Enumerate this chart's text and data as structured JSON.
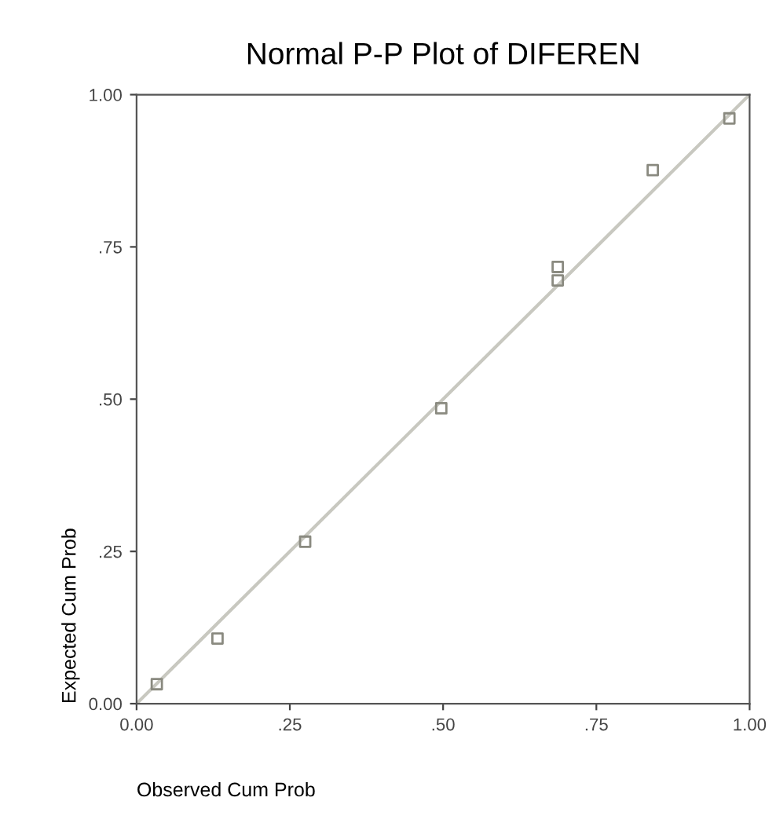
{
  "chart_data": {
    "type": "scatter",
    "title": "Normal P-P Plot of DIFEREN",
    "xlabel": "Observed Cum Prob",
    "ylabel": "Expected Cum Prob",
    "xlim": [
      0,
      1
    ],
    "ylim": [
      0,
      1
    ],
    "xticks": [
      {
        "value": 0,
        "label": "0.00"
      },
      {
        "value": 0.25,
        "label": ".25"
      },
      {
        "value": 0.5,
        "label": ".50"
      },
      {
        "value": 0.75,
        "label": ".75"
      },
      {
        "value": 1,
        "label": "1.00"
      }
    ],
    "yticks": [
      {
        "value": 0,
        "label": "0.00"
      },
      {
        "value": 0.25,
        "label": ".25"
      },
      {
        "value": 0.5,
        "label": ".50"
      },
      {
        "value": 0.75,
        "label": ".75"
      },
      {
        "value": 1,
        "label": "1.00"
      }
    ],
    "grid": false,
    "series": [
      {
        "marker": "square",
        "color": "#8a8a80",
        "x": [
          0.033,
          0.132,
          0.275,
          0.497,
          0.687,
          0.687,
          0.842,
          0.967
        ],
        "values": [
          0.032,
          0.107,
          0.266,
          0.485,
          0.717,
          0.695,
          0.876,
          0.961
        ]
      },
      {
        "type": "line",
        "color": "#c8c8c0",
        "x": [
          0,
          1
        ],
        "values": [
          0,
          1
        ]
      }
    ]
  }
}
